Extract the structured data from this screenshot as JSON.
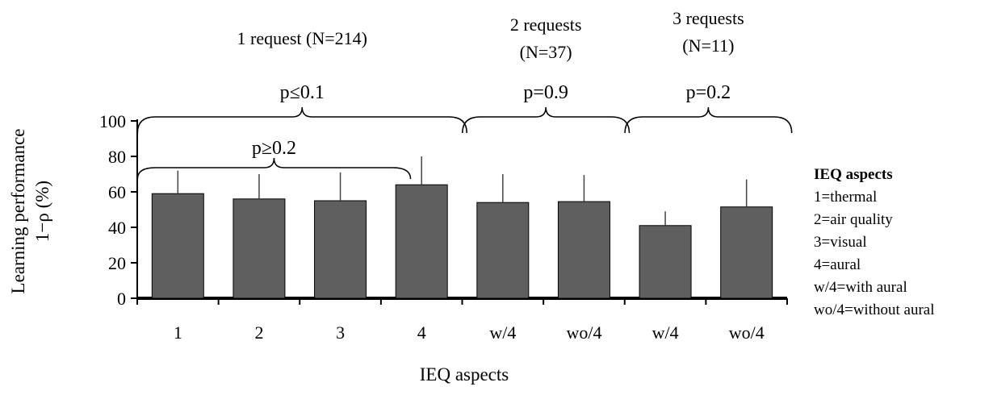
{
  "chart_data": {
    "type": "bar",
    "xlabel": "IEQ aspects",
    "ylabel_lines": [
      "Learning performance",
      "1−ρ (%)"
    ],
    "ylim": [
      0,
      100
    ],
    "yticks": [
      "0",
      "20",
      "40",
      "60",
      "80",
      "100"
    ],
    "grid": false,
    "bar_color": "#5f5f5f",
    "categories": [
      "1",
      "2",
      "3",
      "4",
      "w/4",
      "wo/4",
      "w/4",
      "wo/4"
    ],
    "values": [
      59,
      56,
      55,
      64,
      54,
      54.5,
      41,
      51.5
    ],
    "error_upper": [
      72,
      70,
      71,
      80,
      70,
      69.5,
      49,
      67
    ],
    "groups": [
      {
        "label_lines": [
          "1 request (N=214)"
        ],
        "p_label": "p≤0.1"
      },
      {
        "label_lines": [
          "2 requests",
          "(N=37)"
        ],
        "p_label": "p=0.9"
      },
      {
        "label_lines": [
          "3 requests",
          "(N=11)"
        ],
        "p_label": "p=0.2"
      }
    ],
    "sub_bracket": {
      "p_label": "p≥0.2"
    },
    "legend": {
      "title": "IEQ aspects",
      "items": [
        "1=thermal",
        "2=air quality",
        "3=visual",
        "4=aural",
        "w/4=with aural",
        "wo/4=without aural"
      ],
      "placement": "right"
    }
  }
}
